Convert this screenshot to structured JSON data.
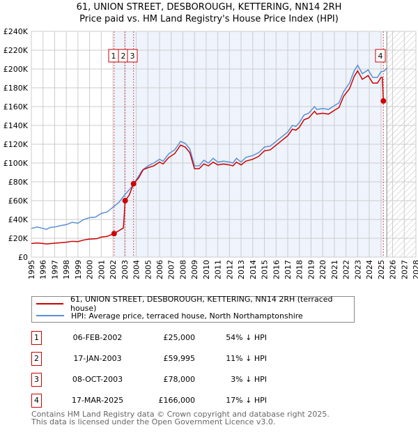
{
  "title_line1": "61, UNION STREET, DESBOROUGH, KETTERING, NN14 2RH",
  "title_line2": "Price paid vs. HM Land Registry's House Price Index (HPI)",
  "chart_data": {
    "type": "line",
    "title": "61, UNION STREET, DESBOROUGH, KETTERING, NN14 2RH — Price paid vs. HM Land Registry's House Price Index (HPI)",
    "xlim": [
      1995,
      2028
    ],
    "ylim": [
      0,
      240000
    ],
    "x_ticks": [
      "1995",
      "1996",
      "1997",
      "1998",
      "1999",
      "2000",
      "2001",
      "2002",
      "2003",
      "2004",
      "2005",
      "2006",
      "2007",
      "2008",
      "2009",
      "2010",
      "2011",
      "2012",
      "2013",
      "2014",
      "2015",
      "2016",
      "2017",
      "2018",
      "2019",
      "2020",
      "2021",
      "2022",
      "2023",
      "2024",
      "2025",
      "2026",
      "2027",
      "2028"
    ],
    "y_ticks": [
      "£0",
      "£20K",
      "£40K",
      "£60K",
      "£80K",
      "£100K",
      "£120K",
      "£140K",
      "£160K",
      "£180K",
      "£200K",
      "£220K",
      "£240K"
    ],
    "grid": true,
    "legend_placement": "below",
    "series": [
      {
        "name": "61, UNION STREET, DESBOROUGH, KETTERING, NN14 2RH (terraced house)",
        "color": "#cc0000",
        "points": [
          [
            1995,
            14500
          ],
          [
            1995.5,
            15000
          ],
          [
            1996,
            14500
          ],
          [
            1996.3,
            14000
          ],
          [
            1997,
            14800
          ],
          [
            1997.5,
            15300
          ],
          [
            1998,
            15800
          ],
          [
            1998.5,
            16800
          ],
          [
            1999,
            16500
          ],
          [
            1999.5,
            18200
          ],
          [
            2000,
            19200
          ],
          [
            2000.6,
            19500
          ],
          [
            2001,
            21300
          ],
          [
            2001.5,
            22000
          ],
          [
            2002.1,
            25000
          ],
          [
            2002.5,
            28000
          ],
          [
            2002.9,
            31000
          ],
          [
            2003.05,
            59995
          ],
          [
            2003.4,
            66000
          ],
          [
            2003.77,
            78000
          ],
          [
            2004.2,
            84000
          ],
          [
            2004.6,
            93000
          ],
          [
            2005,
            95000
          ],
          [
            2005.5,
            97000
          ],
          [
            2006,
            101000
          ],
          [
            2006.3,
            99000
          ],
          [
            2006.8,
            106000
          ],
          [
            2007.3,
            110000
          ],
          [
            2007.8,
            119000
          ],
          [
            2008.2,
            117000
          ],
          [
            2008.6,
            111000
          ],
          [
            2009,
            94000
          ],
          [
            2009.4,
            94000
          ],
          [
            2009.8,
            99000
          ],
          [
            2010.2,
            97000
          ],
          [
            2010.6,
            101000
          ],
          [
            2011,
            98000
          ],
          [
            2011.5,
            99000
          ],
          [
            2012,
            98000
          ],
          [
            2012.3,
            97000
          ],
          [
            2012.6,
            101000
          ],
          [
            2013,
            98000
          ],
          [
            2013.4,
            102000
          ],
          [
            2014,
            104000
          ],
          [
            2014.5,
            107000
          ],
          [
            2015,
            113000
          ],
          [
            2015.5,
            114000
          ],
          [
            2016,
            119000
          ],
          [
            2016.5,
            124000
          ],
          [
            2017,
            129000
          ],
          [
            2017.4,
            136000
          ],
          [
            2017.7,
            135000
          ],
          [
            2018,
            138000
          ],
          [
            2018.4,
            146000
          ],
          [
            2018.8,
            148000
          ],
          [
            2019.3,
            155000
          ],
          [
            2019.5,
            152000
          ],
          [
            2020,
            153000
          ],
          [
            2020.5,
            152000
          ],
          [
            2021,
            156000
          ],
          [
            2021.4,
            159000
          ],
          [
            2021.8,
            171000
          ],
          [
            2022.3,
            179000
          ],
          [
            2022.7,
            192000
          ],
          [
            2023,
            198000
          ],
          [
            2023.4,
            189000
          ],
          [
            2023.9,
            193000
          ],
          [
            2024.3,
            185000
          ],
          [
            2024.7,
            185000
          ],
          [
            2025.0,
            191000
          ],
          [
            2025.12,
            191000
          ],
          [
            2025.21,
            166000
          ]
        ]
      },
      {
        "name": "HPI: Average price, terraced house, North Northamptonshire",
        "color": "#5b8fd4",
        "points": [
          [
            1995,
            30500
          ],
          [
            1995.5,
            32000
          ],
          [
            1996,
            30500
          ],
          [
            1996.3,
            29500
          ],
          [
            1996.6,
            31500
          ],
          [
            1997,
            32000
          ],
          [
            1997.5,
            33500
          ],
          [
            1998,
            34500
          ],
          [
            1998.5,
            37000
          ],
          [
            1999,
            36000
          ],
          [
            1999.5,
            40000
          ],
          [
            2000,
            42000
          ],
          [
            2000.5,
            42500
          ],
          [
            2001,
            46500
          ],
          [
            2001.5,
            48000
          ],
          [
            2002,
            53000
          ],
          [
            2002.5,
            58000
          ],
          [
            2003,
            66000
          ],
          [
            2003.5,
            73000
          ],
          [
            2004,
            82000
          ],
          [
            2004.5,
            92000
          ],
          [
            2005,
            97000
          ],
          [
            2005.5,
            100000
          ],
          [
            2006,
            104000
          ],
          [
            2006.3,
            102000
          ],
          [
            2006.8,
            110000
          ],
          [
            2007.3,
            114000
          ],
          [
            2007.8,
            123000
          ],
          [
            2008.2,
            121000
          ],
          [
            2008.6,
            115000
          ],
          [
            2009,
            97000
          ],
          [
            2009.4,
            97000
          ],
          [
            2009.8,
            103000
          ],
          [
            2010.2,
            100000
          ],
          [
            2010.6,
            105000
          ],
          [
            2011,
            101000
          ],
          [
            2011.5,
            102000
          ],
          [
            2012,
            101000
          ],
          [
            2012.3,
            100000
          ],
          [
            2012.6,
            105000
          ],
          [
            2013,
            101000
          ],
          [
            2013.4,
            106000
          ],
          [
            2014,
            108000
          ],
          [
            2014.5,
            111000
          ],
          [
            2015,
            117000
          ],
          [
            2015.5,
            118000
          ],
          [
            2016,
            123000
          ],
          [
            2016.5,
            128000
          ],
          [
            2017,
            133000
          ],
          [
            2017.4,
            140000
          ],
          [
            2017.7,
            139000
          ],
          [
            2018,
            143000
          ],
          [
            2018.4,
            151000
          ],
          [
            2018.8,
            153000
          ],
          [
            2019.3,
            160000
          ],
          [
            2019.5,
            157000
          ],
          [
            2020,
            158000
          ],
          [
            2020.5,
            157000
          ],
          [
            2021,
            161000
          ],
          [
            2021.4,
            164000
          ],
          [
            2021.8,
            176000
          ],
          [
            2022.3,
            185000
          ],
          [
            2022.7,
            198000
          ],
          [
            2023,
            204000
          ],
          [
            2023.4,
            195000
          ],
          [
            2023.9,
            199000
          ],
          [
            2024.3,
            191000
          ],
          [
            2024.7,
            191000
          ],
          [
            2025,
            197000
          ],
          [
            2025.3,
            198000
          ],
          [
            2025.5,
            201000
          ]
        ]
      }
    ],
    "sales": [
      {
        "label": "1",
        "x": 2002.1,
        "y": 25000
      },
      {
        "label": "2",
        "x": 2003.05,
        "y": 59995
      },
      {
        "label": "3",
        "x": 2003.77,
        "y": 78000
      },
      {
        "label": "4",
        "x": 2025.21,
        "y": 166000
      }
    ],
    "data_end_x": 2025.5,
    "shaded_from": 2002.1
  },
  "legend": {
    "property": "61, UNION STREET, DESBOROUGH, KETTERING, NN14 2RH (terraced house)",
    "hpi": "HPI: Average price, terraced house, North Northamptonshire"
  },
  "transactions": [
    {
      "num": "1",
      "date": "06-FEB-2002",
      "price": "£25,000",
      "hpi": "54% ↓ HPI"
    },
    {
      "num": "2",
      "date": "17-JAN-2003",
      "price": "£59,995",
      "hpi": "11% ↓ HPI"
    },
    {
      "num": "3",
      "date": "08-OCT-2003",
      "price": "£78,000",
      "hpi": "3% ↓ HPI"
    },
    {
      "num": "4",
      "date": "17-MAR-2025",
      "price": "£166,000",
      "hpi": "17% ↓ HPI"
    }
  ],
  "footer_line1": "Contains HM Land Registry data © Crown copyright and database right 2025.",
  "footer_line2": "This data is licensed under the Open Government Licence v3.0."
}
